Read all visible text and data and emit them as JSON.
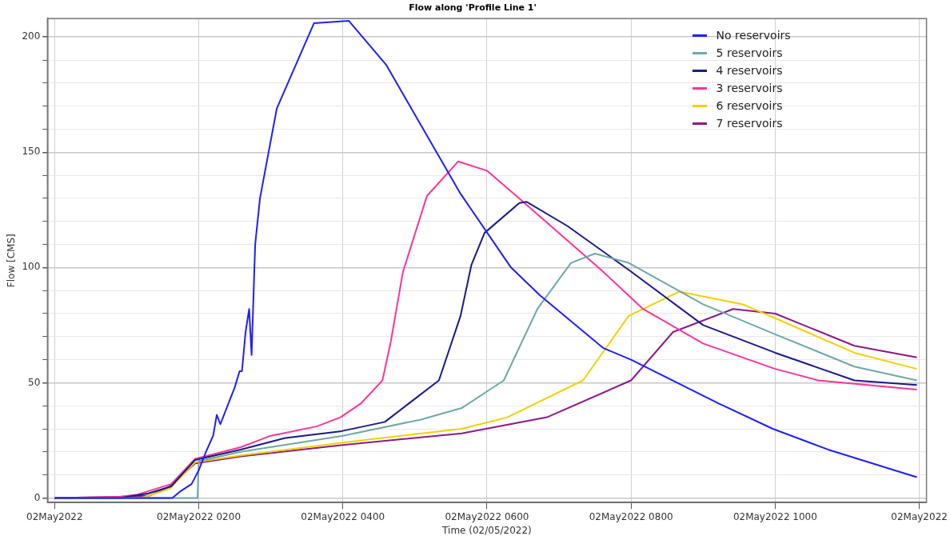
{
  "chart_data": {
    "type": "line",
    "title": "Flow along 'Profile Line 1'",
    "xlabel": "Time (02/05/2022)",
    "ylabel": "Flow [CMS]",
    "xlim": [
      "2022-05-01T23:54",
      "2022-05-02T12:06"
    ],
    "ylim": [
      -2,
      208
    ],
    "xticks": [
      {
        "value": "2022-05-02T00:00",
        "label": "02May2022"
      },
      {
        "value": "2022-05-02T02:00",
        "label": "02May2022 0200"
      },
      {
        "value": "2022-05-02T04:00",
        "label": "02May2022 0400"
      },
      {
        "value": "2022-05-02T06:00",
        "label": "02May2022 0600"
      },
      {
        "value": "2022-05-02T08:00",
        "label": "02May2022 0800"
      },
      {
        "value": "2022-05-02T10:00",
        "label": "02May2022 1000"
      },
      {
        "value": "2022-05-02T12:00",
        "label": "02May2022"
      }
    ],
    "yticks": [
      0,
      {
        "value": 10,
        "label": null
      },
      {
        "value": 20,
        "label": null
      },
      {
        "value": 30,
        "label": null
      },
      {
        "value": 40,
        "label": null
      },
      50,
      {
        "value": 60,
        "label": null
      },
      {
        "value": 70,
        "label": null
      },
      {
        "value": 80,
        "label": null
      },
      {
        "value": 90,
        "label": null
      },
      100,
      {
        "value": 110,
        "label": null
      },
      {
        "value": 120,
        "label": null
      },
      {
        "value": 130,
        "label": null
      },
      {
        "value": 140,
        "label": null
      },
      150,
      {
        "value": 160,
        "label": null
      },
      {
        "value": 170,
        "label": null
      },
      {
        "value": 180,
        "label": null
      },
      {
        "value": 190,
        "label": null
      },
      200
    ],
    "grid": true,
    "legend": "top right",
    "series": [
      {
        "name": "No reservoirs",
        "color": "#1f1fff",
        "x": [
          "2022-05-02T00:00",
          "2022-05-02T01:38",
          "2022-05-02T01:45",
          "2022-05-02T01:54",
          "2022-05-02T02:00",
          "2022-05-02T02:06",
          "2022-05-02T02:12",
          "2022-05-02T02:15",
          "2022-05-02T02:18",
          "2022-05-02T02:24",
          "2022-05-02T02:30",
          "2022-05-02T02:34",
          "2022-05-02T02:36",
          "2022-05-02T02:39",
          "2022-05-02T02:42",
          "2022-05-02T02:44",
          "2022-05-02T02:47",
          "2022-05-02T02:51",
          "2022-05-02T03:05",
          "2022-05-02T03:36",
          "2022-05-02T04:05",
          "2022-05-02T04:36",
          "2022-05-02T05:38",
          "2022-05-02T06:20",
          "2022-05-02T06:44",
          "2022-05-02T07:37",
          "2022-05-02T08:00",
          "2022-05-02T09:13",
          "2022-05-02T09:58",
          "2022-05-02T10:44",
          "2022-05-02T11:58"
        ],
        "values": [
          0,
          0,
          3,
          6,
          12,
          20,
          27,
          36,
          32,
          40,
          48,
          55,
          55,
          72,
          82,
          62,
          110,
          130,
          169,
          206,
          207,
          188,
          132,
          100,
          88,
          65,
          60,
          41,
          30,
          21,
          9
        ]
      },
      {
        "name": "5 reservoirs",
        "color": "#6fa8a8",
        "x": [
          "2022-05-02T00:00",
          "2022-05-02T01:59",
          "2022-05-02T02:00",
          "2022-05-02T02:35",
          "2022-05-02T04:00",
          "2022-05-02T05:05",
          "2022-05-02T05:39",
          "2022-05-02T06:14",
          "2022-05-02T06:42",
          "2022-05-02T07:10",
          "2022-05-02T07:30",
          "2022-05-02T07:58",
          "2022-05-02T09:00",
          "2022-05-02T10:00",
          "2022-05-02T11:06",
          "2022-05-02T11:58"
        ],
        "values": [
          0,
          0,
          16,
          20,
          27,
          34,
          39,
          51,
          82,
          102,
          106,
          102,
          84,
          71,
          57,
          51
        ]
      },
      {
        "name": "4 reservoirs",
        "color": "#1a1a8c",
        "x": [
          "2022-05-02T00:00",
          "2022-05-02T00:54",
          "2022-05-02T01:18",
          "2022-05-02T01:37",
          "2022-05-02T01:57",
          "2022-05-02T02:35",
          "2022-05-02T03:12",
          "2022-05-02T03:59",
          "2022-05-02T04:35",
          "2022-05-02T05:20",
          "2022-05-02T05:38",
          "2022-05-02T05:47",
          "2022-05-02T05:58",
          "2022-05-02T06:27",
          "2022-05-02T06:33",
          "2022-05-02T07:07",
          "2022-05-02T07:58",
          "2022-05-02T09:00",
          "2022-05-02T10:00",
          "2022-05-02T11:06",
          "2022-05-02T11:58"
        ],
        "values": [
          0,
          0,
          2,
          5,
          16.5,
          21,
          26,
          29,
          33,
          51,
          79,
          101,
          115,
          128,
          128.5,
          118,
          99,
          75,
          63,
          51,
          49
        ]
      },
      {
        "name": "3 reservoirs",
        "color": "#ff3399",
        "x": [
          "2022-05-02T00:00",
          "2022-05-02T00:54",
          "2022-05-02T01:09",
          "2022-05-02T01:37",
          "2022-05-02T01:57",
          "2022-05-02T02:35",
          "2022-05-02T03:00",
          "2022-05-02T03:38",
          "2022-05-02T03:58",
          "2022-05-02T04:15",
          "2022-05-02T04:33",
          "2022-05-02T04:40",
          "2022-05-02T04:50",
          "2022-05-02T05:10",
          "2022-05-02T05:36",
          "2022-05-02T06:00",
          "2022-05-02T06:29",
          "2022-05-02T07:35",
          "2022-05-02T08:10",
          "2022-05-02T09:00",
          "2022-05-02T10:00",
          "2022-05-02T10:36",
          "2022-05-02T11:58"
        ],
        "values": [
          0,
          0.5,
          1.5,
          6,
          17,
          22,
          27,
          31,
          35,
          41,
          51,
          68,
          98,
          131,
          146,
          142,
          129,
          99,
          82,
          67,
          56,
          51,
          47
        ]
      },
      {
        "name": "6 reservoirs",
        "color": "#f5d000",
        "x": [
          "2022-05-02T00:00",
          "2022-05-02T01:12",
          "2022-05-02T01:36",
          "2022-05-02T01:57",
          "2022-05-02T02:35",
          "2022-05-02T04:00",
          "2022-05-02T05:39",
          "2022-05-02T06:17",
          "2022-05-02T07:20",
          "2022-05-02T07:58",
          "2022-05-02T08:40",
          "2022-05-02T09:33",
          "2022-05-02T10:00",
          "2022-05-02T11:06",
          "2022-05-02T11:58"
        ],
        "values": [
          0,
          0,
          4,
          15.5,
          18.5,
          24,
          30,
          35,
          51,
          79,
          89.5,
          84,
          78,
          63,
          56
        ]
      },
      {
        "name": "7 reservoirs",
        "color": "#8b1a8b",
        "x": [
          "2022-05-02T00:00",
          "2022-05-02T00:54",
          "2022-05-02T01:19",
          "2022-05-02T01:36",
          "2022-05-02T01:57",
          "2022-05-02T02:35",
          "2022-05-02T04:00",
          "2022-05-02T05:39",
          "2022-05-02T06:50",
          "2022-05-02T08:00",
          "2022-05-02T08:35",
          "2022-05-02T09:25",
          "2022-05-02T10:00",
          "2022-05-02T11:06",
          "2022-05-02T11:58"
        ],
        "values": [
          0,
          0.5,
          1,
          5,
          15,
          18,
          23,
          28,
          35,
          51,
          72,
          82,
          80,
          66,
          61
        ]
      }
    ]
  }
}
